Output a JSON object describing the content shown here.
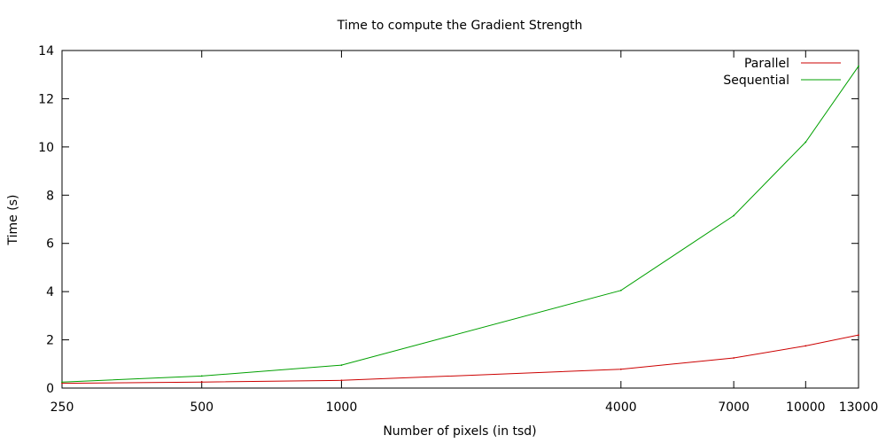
{
  "chart_data": {
    "type": "line",
    "title": "Time to compute the Gradient Strength",
    "xlabel": "Number of pixels (in tsd)",
    "ylabel": "Time (s)",
    "x_scale": "log",
    "x": [
      250,
      500,
      1000,
      4000,
      7000,
      10000,
      13000
    ],
    "xlim": [
      250,
      13000
    ],
    "ylim": [
      0,
      14
    ],
    "x_ticks": [
      "250",
      "500",
      "1000",
      "4000",
      "7000",
      "10000",
      "13000"
    ],
    "y_ticks": [
      "0",
      "2",
      "4",
      "6",
      "8",
      "10",
      "12",
      "14"
    ],
    "grid": false,
    "legend_position": "top-right",
    "series": [
      {
        "name": "Parallel",
        "color": "#cc0000",
        "values": [
          0.2,
          0.25,
          0.32,
          0.78,
          1.25,
          1.75,
          2.2
        ]
      },
      {
        "name": "Sequential",
        "color": "#00a000",
        "values": [
          0.25,
          0.5,
          0.95,
          4.05,
          7.15,
          10.2,
          13.35
        ]
      }
    ]
  }
}
